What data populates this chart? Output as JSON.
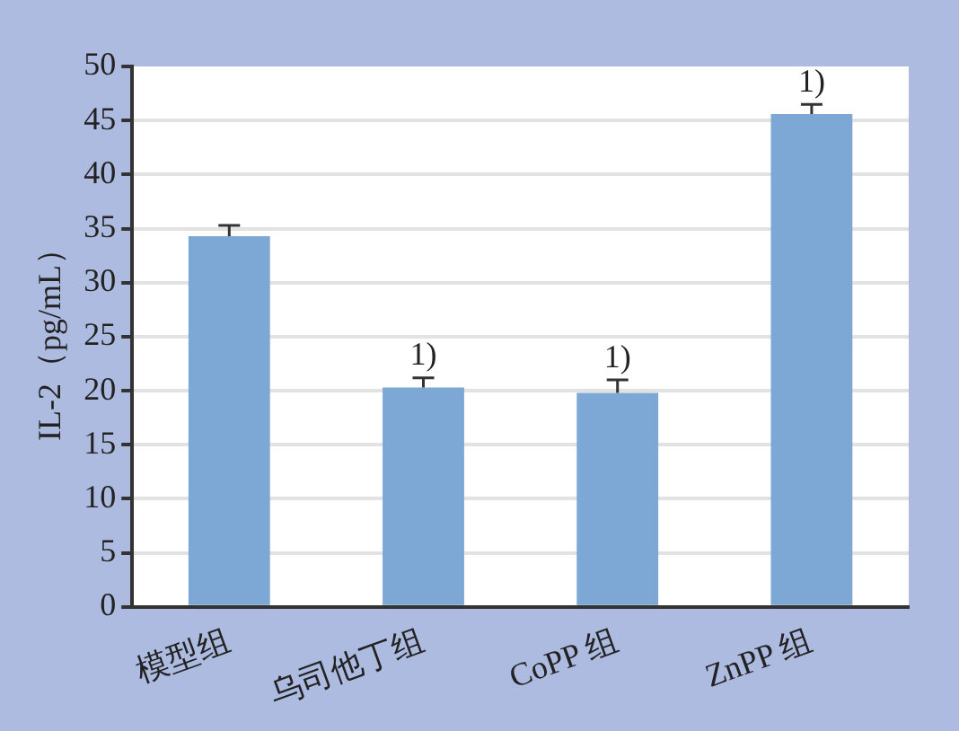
{
  "chart_data": {
    "type": "bar",
    "ylabel": "IL-2（pg/mL）",
    "categories": [
      "模型组",
      "乌司他丁组",
      "CoPP 组",
      "ZnPP 组"
    ],
    "values": [
      34.3,
      20.3,
      19.8,
      45.6
    ],
    "errors": [
      1.0,
      0.9,
      1.2,
      0.9
    ],
    "color": "#7da7d4",
    "ylim": [
      0,
      50
    ],
    "yticks": [
      0,
      5,
      10,
      15,
      20,
      25,
      30,
      35,
      40,
      45,
      50
    ],
    "grid": "y",
    "legend": false,
    "annotations": [
      {
        "text": "1)",
        "x": "乌司他丁组",
        "y": 21.2
      },
      {
        "text": "1)",
        "x": "CoPP 组",
        "y": 21.0
      },
      {
        "text": "1)",
        "x": "ZnPP 组",
        "y": 46.5
      }
    ]
  }
}
